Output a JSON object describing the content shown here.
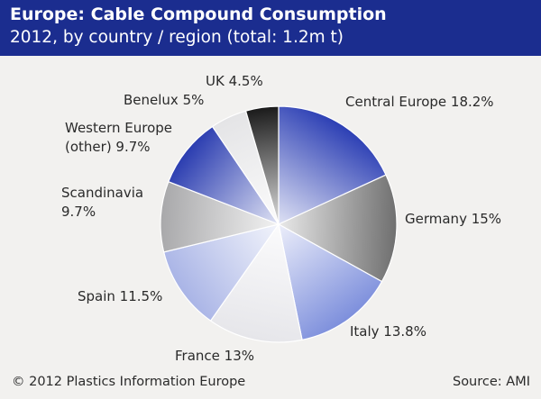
{
  "header": {
    "title": "Europe: Cable Compound Consumption",
    "subtitle": "2012, by country / region (total: 1.2m t)"
  },
  "footer": {
    "copyright": "© 2012 Plastics Information Europe",
    "source": "Source: AMI"
  },
  "chart_data": {
    "type": "pie",
    "title": "Europe: Cable Compound Consumption",
    "subtitle": "2012, by country / region (total: 1.2m t)",
    "total": "1.2m t",
    "slices": [
      {
        "label": "Central Europe 18.2%",
        "name": "Central Europe",
        "value": 18.2,
        "color": "#2c3fb4"
      },
      {
        "label": "Germany 15%",
        "name": "Germany",
        "value": 15.0,
        "color": "#6f6f6f"
      },
      {
        "label": "Italy 13.8%",
        "name": "Italy",
        "value": 13.8,
        "color": "#7d8fdc"
      },
      {
        "label": "France 13%",
        "name": "France",
        "value": 13.0,
        "color": "#e6e6ea"
      },
      {
        "label": "Spain 11.5%",
        "name": "Spain",
        "value": 11.5,
        "color": "#a9b4e6"
      },
      {
        "label": "Scandinavia 9.7%",
        "name": "Scandinavia",
        "value": 9.7,
        "color": "#a8a8aa"
      },
      {
        "label": "Western Europe (other) 9.7%",
        "name": "Western Europe (other)",
        "value": 9.7,
        "color": "#2a3cb0"
      },
      {
        "label": "Benelux 5%",
        "name": "Benelux",
        "value": 5.0,
        "color": "#e4e4e6"
      },
      {
        "label": "UK 4.5%",
        "name": "UK",
        "value": 4.5,
        "color": "#1a1a1a"
      }
    ]
  }
}
